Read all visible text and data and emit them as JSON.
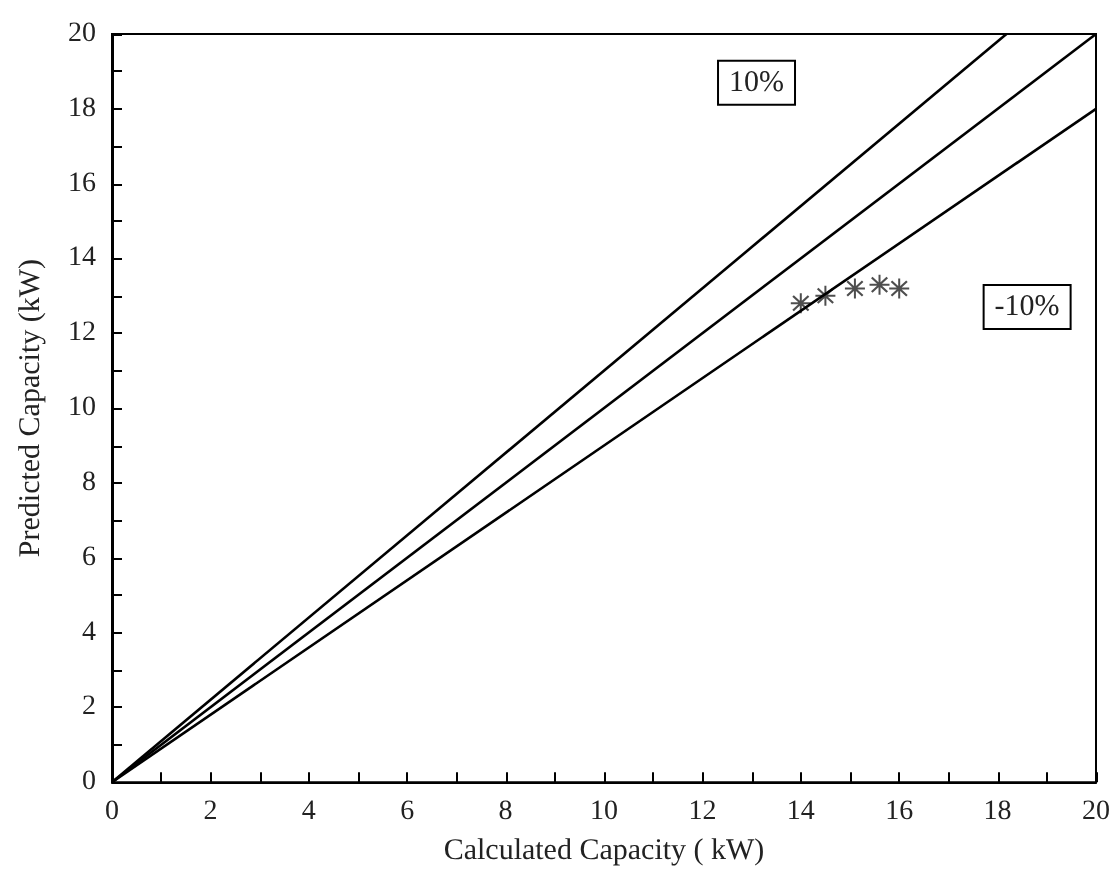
{
  "chart_data": {
    "type": "scatter",
    "xlabel": "Calculated Capacity ( kW)",
    "ylabel": "Predicted Capacity (kW)",
    "xlim": [
      0,
      20
    ],
    "ylim": [
      0,
      20
    ],
    "xticks": [
      0,
      {
        "value": 1,
        "label": null
      },
      2,
      {
        "value": 3,
        "label": null
      },
      4,
      {
        "value": 5,
        "label": null
      },
      6,
      {
        "value": 7,
        "label": null
      },
      8,
      {
        "value": 9,
        "label": null
      },
      10,
      {
        "value": 11,
        "label": null
      },
      12,
      {
        "value": 13,
        "label": null
      },
      14,
      {
        "value": 15,
        "label": null
      },
      16,
      {
        "value": 17,
        "label": null
      },
      18,
      {
        "value": 19,
        "label": null
      },
      20
    ],
    "yticks": [
      0,
      {
        "value": 1,
        "label": null
      },
      2,
      {
        "value": 3,
        "label": null
      },
      4,
      {
        "value": 5,
        "label": null
      },
      6,
      {
        "value": 7,
        "label": null
      },
      8,
      {
        "value": 9,
        "label": null
      },
      10,
      {
        "value": 11,
        "label": null
      },
      12,
      {
        "value": 13,
        "label": null
      },
      14,
      {
        "value": 15,
        "label": null
      },
      16,
      {
        "value": 17,
        "label": null
      },
      18,
      {
        "value": 19,
        "label": null
      },
      20
    ],
    "grid": false,
    "series": [
      {
        "type": "line",
        "color": "#000000",
        "x": [
          0,
          18.18
        ],
        "values": [
          0,
          20
        ],
        "marker": "none",
        "line_style": "solid"
      },
      {
        "type": "line",
        "color": "#000000",
        "x": [
          0,
          20
        ],
        "values": [
          0,
          20
        ],
        "marker": "none",
        "line_style": "solid"
      },
      {
        "type": "line",
        "color": "#000000",
        "x": [
          0,
          20
        ],
        "values": [
          0,
          18
        ],
        "marker": "none",
        "line_style": "solid"
      },
      {
        "color": "#222222",
        "x": [
          14,
          14.5,
          15.1,
          15.6,
          16
        ],
        "values": [
          12.8,
          13.0,
          13.2,
          13.3,
          13.2
        ],
        "marker": "star"
      }
    ],
    "annotations": [
      {
        "text": "10%",
        "x": 13.1,
        "y": 18.7
      },
      {
        "text": "-10%",
        "x": 18.6,
        "y": 12.7
      }
    ]
  }
}
